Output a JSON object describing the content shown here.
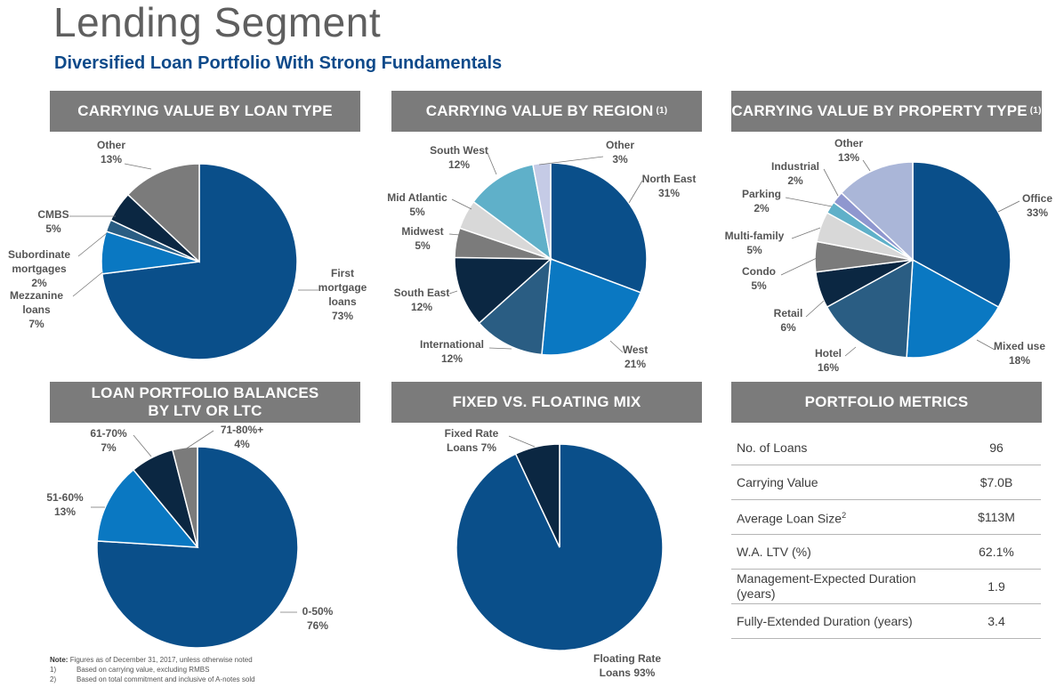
{
  "header": {
    "title": "Lending Segment",
    "subtitle": "Diversified Loan Portfolio With Strong Fundamentals"
  },
  "colors": {
    "band": "#7b7b7b",
    "title": "#5f5f5f",
    "subtitle": "#0e4a8a"
  },
  "panels": {
    "loan_type": {
      "title": "CARRYING VALUE BY LOAN TYPE",
      "sup": ""
    },
    "region": {
      "title": "CARRYING VALUE BY REGION",
      "sup": "(1)"
    },
    "property": {
      "title": "CARRYING VALUE BY PROPERTY TYPE",
      "sup": "(1)"
    },
    "ltv": {
      "title_line1": "LOAN PORTFOLIO BALANCES",
      "title_line2": "BY LTV OR LTC"
    },
    "fixed": {
      "title": "FIXED VS. FLOATING MIX"
    },
    "metrics": {
      "title": "PORTFOLIO METRICS"
    }
  },
  "chart_data": [
    {
      "id": "loan_type",
      "type": "pie",
      "title": "CARRYING VALUE BY LOAN TYPE",
      "slices": [
        {
          "label": "First mortgage loans",
          "lines": [
            "First",
            "mortgage",
            "loans"
          ],
          "pct": "73%",
          "value": 73,
          "color": "#0a4f8a"
        },
        {
          "label": "Mezzanine loans",
          "lines": [
            "Mezzanine",
            "loans"
          ],
          "pct": "7%",
          "value": 7,
          "color": "#0a78c2"
        },
        {
          "label": "Subordinate mortgages",
          "lines": [
            "Subordinate",
            "mortgages"
          ],
          "pct": "2%",
          "value": 2,
          "color": "#2a5d83"
        },
        {
          "label": "CMBS",
          "lines": [
            "CMBS"
          ],
          "pct": "5%",
          "value": 5,
          "color": "#0b2742"
        },
        {
          "label": "Other",
          "lines": [
            "Other"
          ],
          "pct": "13%",
          "value": 13,
          "color": "#7b7b7b"
        }
      ]
    },
    {
      "id": "region",
      "type": "pie",
      "title": "CARRYING VALUE BY REGION",
      "slices": [
        {
          "label": "North East",
          "lines": [
            "North East"
          ],
          "pct": "31%",
          "value": 31,
          "color": "#0a4f8a"
        },
        {
          "label": "West",
          "lines": [
            "West"
          ],
          "pct": "21%",
          "value": 21,
          "color": "#0a78c2"
        },
        {
          "label": "International",
          "lines": [
            "International"
          ],
          "pct": "12%",
          "value": 12,
          "color": "#2a5d83"
        },
        {
          "label": "South East",
          "lines": [
            "South East"
          ],
          "pct": "12%",
          "value": 12,
          "color": "#0b2742"
        },
        {
          "label": "Midwest",
          "lines": [
            "Midwest"
          ],
          "pct": "5%",
          "value": 5,
          "color": "#7b7b7b"
        },
        {
          "label": "Mid Atlantic",
          "lines": [
            "Mid Atlantic"
          ],
          "pct": "5%",
          "value": 5,
          "color": "#d8d8d8"
        },
        {
          "label": "South West",
          "lines": [
            "South West"
          ],
          "pct": "12%",
          "value": 12,
          "color": "#5fb0c9"
        },
        {
          "label": "Other",
          "lines": [
            "Other"
          ],
          "pct": "3%",
          "value": 3,
          "color": "#c5cbe6"
        }
      ]
    },
    {
      "id": "property",
      "type": "pie",
      "title": "CARRYING VALUE BY PROPERTY TYPE",
      "slices": [
        {
          "label": "Office",
          "lines": [
            "Office"
          ],
          "pct": "33%",
          "value": 33,
          "color": "#0a4f8a"
        },
        {
          "label": "Mixed use",
          "lines": [
            "Mixed use"
          ],
          "pct": "18%",
          "value": 18,
          "color": "#0a78c2"
        },
        {
          "label": "Hotel",
          "lines": [
            "Hotel"
          ],
          "pct": "16%",
          "value": 16,
          "color": "#2a5d83"
        },
        {
          "label": "Retail",
          "lines": [
            "Retail"
          ],
          "pct": "6%",
          "value": 6,
          "color": "#0b2742"
        },
        {
          "label": "Condo",
          "lines": [
            "Condo"
          ],
          "pct": "5%",
          "value": 5,
          "color": "#7b7b7b"
        },
        {
          "label": "Multi-family",
          "lines": [
            "Multi-family"
          ],
          "pct": "5%",
          "value": 5,
          "color": "#d8d8d8"
        },
        {
          "label": "Parking",
          "lines": [
            "Parking"
          ],
          "pct": "2%",
          "value": 2,
          "color": "#5fb0c9"
        },
        {
          "label": "Industrial",
          "lines": [
            "Industrial"
          ],
          "pct": "2%",
          "value": 2,
          "color": "#8f97cf"
        },
        {
          "label": "Other",
          "lines": [
            "Other"
          ],
          "pct": "13%",
          "value": 13,
          "color": "#aab6d8"
        }
      ]
    },
    {
      "id": "ltv",
      "type": "pie",
      "title": "LOAN PORTFOLIO BALANCES BY LTV OR LTC",
      "slices": [
        {
          "label": "0-50%",
          "lines": [
            "0-50%"
          ],
          "pct": "76%",
          "value": 76,
          "color": "#0a4f8a"
        },
        {
          "label": "51-60%",
          "lines": [
            "51-60%"
          ],
          "pct": "13%",
          "value": 13,
          "color": "#0a78c2"
        },
        {
          "label": "61-70%",
          "lines": [
            "61-70%"
          ],
          "pct": "7%",
          "value": 7,
          "color": "#0b2742"
        },
        {
          "label": "71-80%+",
          "lines": [
            "71-80%+"
          ],
          "pct": "4%",
          "value": 4,
          "color": "#7b7b7b"
        }
      ]
    },
    {
      "id": "fixed",
      "type": "pie",
      "title": "FIXED VS. FLOATING MIX",
      "slices": [
        {
          "label": "Floating Rate Loans",
          "lines": [
            "Floating Rate"
          ],
          "pct": "Loans 93%",
          "value": 93,
          "color": "#0a4f8a"
        },
        {
          "label": "Fixed Rate Loans",
          "lines": [
            "Fixed Rate"
          ],
          "pct": "Loans 7%",
          "value": 7,
          "color": "#0b2742"
        }
      ]
    }
  ],
  "metrics": [
    {
      "label": "No. of Loans",
      "sup": "",
      "value": "96"
    },
    {
      "label": "Carrying Value",
      "sup": "",
      "value": "$7.0B"
    },
    {
      "label": "Average Loan Size",
      "sup": "2",
      "value": "$113M"
    },
    {
      "label": "W.A. LTV (%)",
      "sup": "",
      "value": "62.1%"
    },
    {
      "label": "Management-Expected Duration (years)",
      "sup": "",
      "value": "1.9"
    },
    {
      "label": "Fully-Extended Duration (years)",
      "sup": "",
      "value": "3.4"
    }
  ],
  "notes": {
    "head": "Note:",
    "main": "Figures as of December 31, 2017, unless otherwise noted",
    "n1": "1)",
    "t1": "Based on carrying value, excluding RMBS",
    "n2": "2)",
    "t2": "Based on total commitment and inclusive of A-notes sold"
  }
}
